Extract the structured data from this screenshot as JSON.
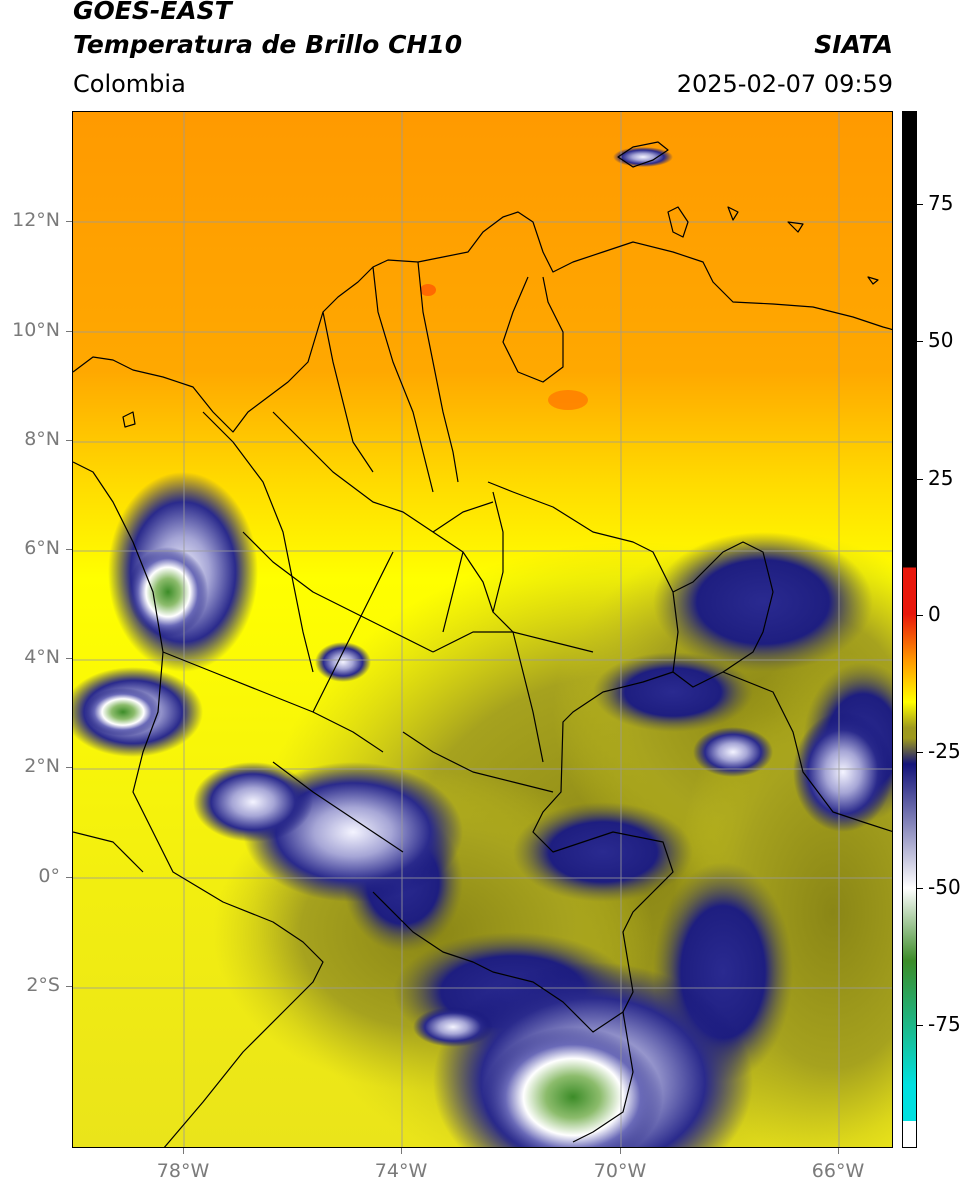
{
  "header": {
    "title_line1": "GOES-EAST",
    "title_line2": "Temperatura de Brillo CH10",
    "organization": "SIATA",
    "region": "Colombia",
    "timestamp": "2025-02-07 09:59"
  },
  "map": {
    "lat_labels": [
      "12°N",
      "10°N",
      "8°N",
      "6°N",
      "4°N",
      "2°N",
      "0°",
      "2°S"
    ],
    "lon_labels": [
      "78°W",
      "74°W",
      "70°W",
      "66°W"
    ],
    "gridlines": true
  },
  "colorbar": {
    "labels": [
      "75",
      "50",
      "25",
      "0",
      "-25",
      "-50",
      "-75"
    ],
    "colors": {
      "black": "#000000",
      "red": "#e8170c",
      "orange": "#ff9900",
      "yellow": "#ffff00",
      "olive": "#9e9a1e",
      "navy": "#14147a",
      "white": "#ffffff",
      "green": "#3c8c28",
      "cyan": "#00e0e0"
    }
  }
}
